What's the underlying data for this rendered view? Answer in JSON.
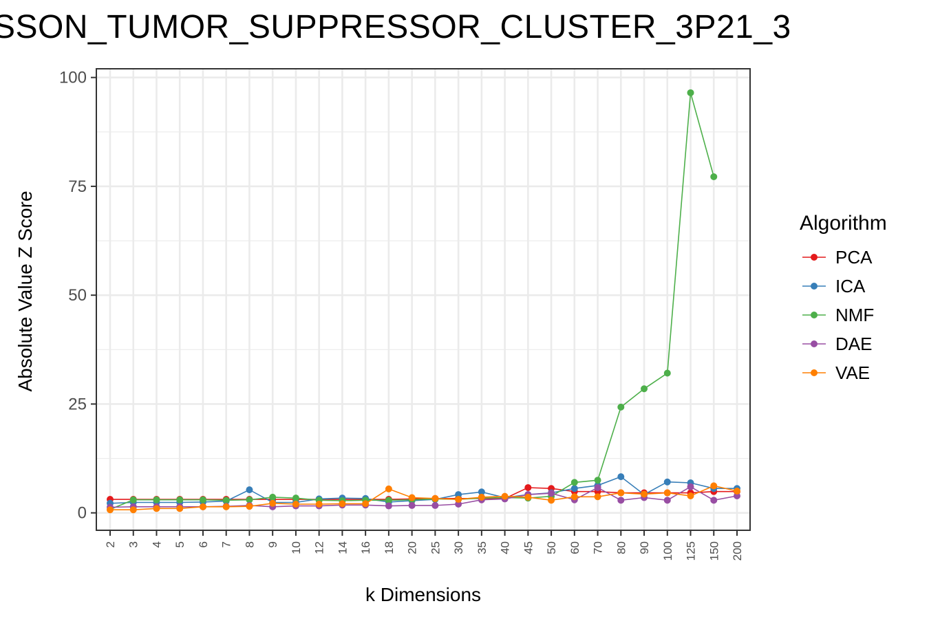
{
  "chart_data": {
    "type": "line",
    "title": "SSON_TUMOR_SUPPRESSOR_CLUSTER_3P21_3",
    "xlabel": "k Dimensions",
    "ylabel": "Absolute Value Z Score",
    "categories": [
      "2",
      "3",
      "4",
      "5",
      "6",
      "7",
      "8",
      "9",
      "10",
      "12",
      "14",
      "16",
      "18",
      "20",
      "25",
      "30",
      "35",
      "40",
      "45",
      "50",
      "60",
      "70",
      "80",
      "90",
      "100",
      "125",
      "150",
      "200"
    ],
    "ylim": [
      -4,
      102
    ],
    "yticks": [
      0,
      25,
      50,
      75,
      100
    ],
    "grid": true,
    "legend": {
      "title": "Algorithm",
      "position": "right"
    },
    "series": [
      {
        "name": "PCA",
        "color": "#E41A1C",
        "values": [
          3.1,
          3.1,
          3.1,
          3.1,
          3.1,
          3.1,
          3.1,
          3.1,
          3.1,
          3.1,
          3.1,
          3.1,
          3.1,
          3.2,
          3.3,
          3.3,
          3.3,
          3.3,
          5.8,
          5.6,
          4.9,
          4.9,
          4.6,
          4.6,
          4.6,
          4.6,
          4.9,
          4.9
        ]
      },
      {
        "name": "ICA",
        "color": "#377EB8",
        "values": [
          2.2,
          2.4,
          2.4,
          2.4,
          2.5,
          2.7,
          5.3,
          2.4,
          2.4,
          3.2,
          3.4,
          3.3,
          2.5,
          2.8,
          3.1,
          4.2,
          4.8,
          3.5,
          4.2,
          4.6,
          5.6,
          6.3,
          8.3,
          4.2,
          7.1,
          6.9,
          5.6,
          5.6
        ]
      },
      {
        "name": "NMF",
        "color": "#4DAF4A",
        "values": [
          0.8,
          3.0,
          3.0,
          3.0,
          3.0,
          2.9,
          3.0,
          3.6,
          3.4,
          2.9,
          2.8,
          2.9,
          2.9,
          3.0,
          3.2,
          3.1,
          3.4,
          3.5,
          3.4,
          3.8,
          7.0,
          7.5,
          24.3,
          28.5,
          32.1,
          96.5,
          77.2,
          null
        ]
      },
      {
        "name": "DAE",
        "color": "#984EA3",
        "values": [
          1.3,
          1.4,
          1.4,
          1.4,
          1.4,
          1.5,
          1.7,
          1.4,
          1.6,
          1.6,
          1.8,
          1.8,
          1.6,
          1.7,
          1.7,
          2.0,
          3.0,
          3.2,
          4.2,
          4.5,
          3.0,
          5.8,
          2.9,
          3.5,
          2.9,
          6.0,
          2.9,
          3.9
        ]
      },
      {
        "name": "VAE",
        "color": "#FF7F00",
        "values": [
          0.7,
          0.7,
          1.0,
          1.0,
          1.4,
          1.4,
          1.5,
          2.2,
          2.0,
          2.0,
          2.1,
          2.1,
          5.5,
          3.5,
          3.3,
          3.1,
          3.6,
          3.8,
          3.6,
          2.9,
          3.7,
          3.7,
          4.6,
          4.3,
          4.6,
          3.9,
          6.2,
          5.0
        ]
      }
    ]
  }
}
